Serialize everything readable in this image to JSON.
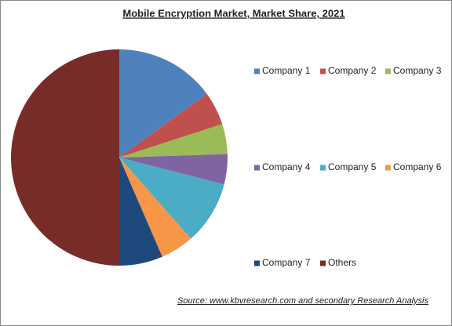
{
  "chart_data": {
    "type": "pie",
    "title": "Mobile Encryption Market, Market Share, 2021",
    "categories": [
      "Company 1",
      "Company 2",
      "Company 3",
      "Company 4",
      "Company 5",
      "Company 6",
      "Company 7",
      "Others"
    ],
    "values": [
      15,
      5,
      4.5,
      4.5,
      9.5,
      5,
      6.5,
      50
    ],
    "colors": [
      "#4f81bd",
      "#c0504d",
      "#9bbb59",
      "#8064a2",
      "#4bacc6",
      "#f79646",
      "#1f497d",
      "#772c2a"
    ],
    "legend": "right",
    "source": "Source:  www.kbvresearch.com  and secondary  Research  Analysis"
  }
}
